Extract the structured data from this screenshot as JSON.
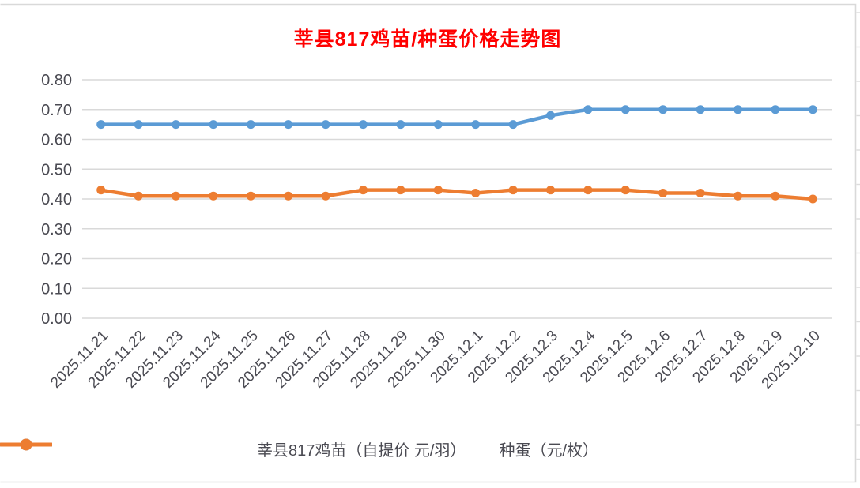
{
  "title": {
    "text": "莘县817鸡苗/种蛋价格走势图",
    "color": "#FF0000"
  },
  "chart_data": {
    "type": "line",
    "title": "莘县817鸡苗/种蛋价格走势图",
    "xlabel": "",
    "ylabel": "",
    "grid": true,
    "legend_position": "bottom",
    "ylim": [
      0,
      0.8
    ],
    "ytick_step": 0.1,
    "ytick_labels": [
      "0.00",
      "0.10",
      "0.20",
      "0.30",
      "0.40",
      "0.50",
      "0.60",
      "0.70",
      "0.80"
    ],
    "categories": [
      "2025.11.21",
      "2025.11.22",
      "2025.11.23",
      "2025.11.24",
      "2025.11.25",
      "2025.11.26",
      "2025.11.27",
      "2025.11.28",
      "2025.11.29",
      "2025.11.30",
      "2025.12.1",
      "2025.12.2",
      "2025.12.3",
      "2025.12.4",
      "2025.12.5",
      "2025.12.6",
      "2025.12.7",
      "2025.12.8",
      "2025.12.9",
      "2025.12.10"
    ],
    "series": [
      {
        "name": "莘县817鸡苗（自提价 元/羽）",
        "color": "#5B9BD5",
        "values": [
          0.65,
          0.65,
          0.65,
          0.65,
          0.65,
          0.65,
          0.65,
          0.65,
          0.65,
          0.65,
          0.65,
          0.65,
          0.68,
          0.7,
          0.7,
          0.7,
          0.7,
          0.7,
          0.7,
          0.7
        ]
      },
      {
        "name": "种蛋（元/枚）",
        "color": "#ED7D31",
        "values": [
          0.43,
          0.41,
          0.41,
          0.41,
          0.41,
          0.41,
          0.41,
          0.43,
          0.43,
          0.43,
          0.42,
          0.43,
          0.43,
          0.43,
          0.43,
          0.42,
          0.42,
          0.41,
          0.41,
          0.4
        ]
      }
    ]
  },
  "theme": {
    "gridline_color": "#D9D9D9",
    "chart_border_color": "#D9D9D9",
    "sheet_gridline_color": "#DCDCDC",
    "axis_text_color": "#4A4A52",
    "background": "#FFFFFF"
  }
}
